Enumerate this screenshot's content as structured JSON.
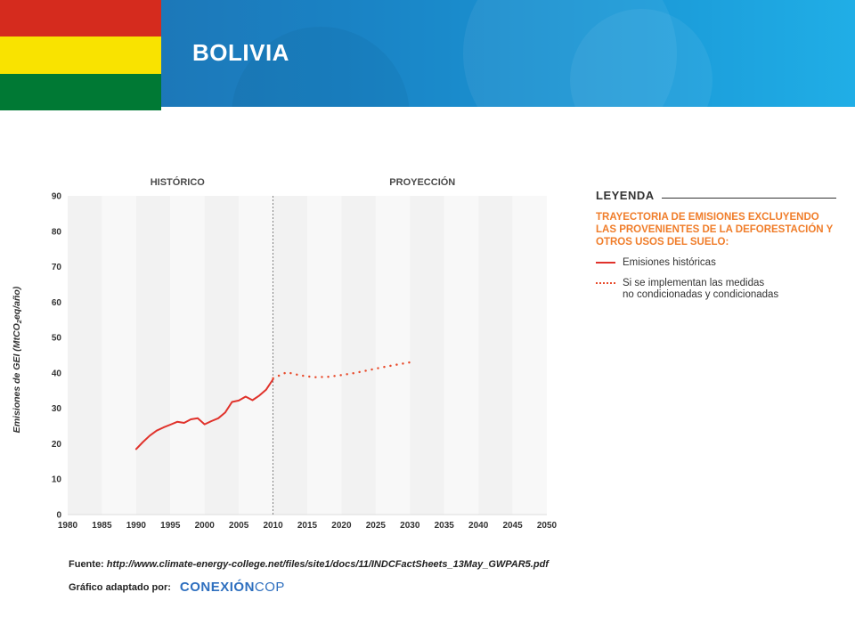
{
  "slide": {
    "title": "BOLIVIA",
    "flag_colors": [
      "#d52b1e",
      "#f9e300",
      "#007934"
    ]
  },
  "chart_data": {
    "type": "line",
    "section_labels": [
      "HISTÓRICO",
      "PROYECCIÓN"
    ],
    "ylabel": "Emisiones de GEI (MtCO2eq/año)",
    "xlabel": "",
    "xlim": [
      1980,
      2050
    ],
    "ylim": [
      0,
      90
    ],
    "x_ticks": [
      1980,
      1985,
      1990,
      1995,
      2000,
      2005,
      2010,
      2015,
      2020,
      2025,
      2030,
      2035,
      2040,
      2045,
      2050
    ],
    "y_ticks": [
      0,
      10,
      20,
      30,
      40,
      50,
      60,
      70,
      80,
      90
    ],
    "grid": "alternating vertical bands",
    "divider_x": 2010,
    "series": [
      {
        "name": "Emisiones históricas",
        "style": "solid",
        "color": "#e0322b",
        "x": [
          1990,
          1991,
          1992,
          1993,
          1994,
          1995,
          1996,
          1997,
          1998,
          1999,
          2000,
          2001,
          2002,
          2003,
          2004,
          2005,
          2006,
          2007,
          2008,
          2009,
          2010
        ],
        "y": [
          18.5,
          20.5,
          22.3,
          23.7,
          24.6,
          25.4,
          26.2,
          25.9,
          26.9,
          27.2,
          25.5,
          26.4,
          27.2,
          28.8,
          31.8,
          32.2,
          33.3,
          32.3,
          33.6,
          35.3,
          38.2
        ]
      },
      {
        "name": "Si se implementan las medidas no condicionadas y condicionadas",
        "style": "dotted",
        "color": "#e84b2c",
        "x": [
          2010,
          2012,
          2014,
          2016,
          2018,
          2020,
          2022,
          2024,
          2026,
          2028,
          2030
        ],
        "y": [
          38.5,
          40.2,
          39.3,
          38.8,
          38.9,
          39.4,
          40.0,
          40.8,
          41.6,
          42.3,
          43.0
        ]
      }
    ]
  },
  "legend": {
    "title": "LEYENDA",
    "subtitle": "TRAYECTORIA DE EMISIONES EXCLUYENDO LAS PROVENIENTES DE LA DEFORESTACIÓN Y OTROS USOS DEL SUELO:",
    "items": [
      {
        "label": "Emisiones históricas"
      },
      {
        "label_line1": "Si se implementan las medidas",
        "label_line2": "no condicionadas y condicionadas"
      }
    ]
  },
  "footer": {
    "source_label": "Fuente:",
    "source_url": "http://www.climate-energy-college.net/files/site1/docs/11/INDCFactSheets_13May_GWPAR5.pdf",
    "adapted_label": "Gráfico adaptado por:",
    "logo_strong": "CONEXIÓN",
    "logo_light": "COP"
  }
}
